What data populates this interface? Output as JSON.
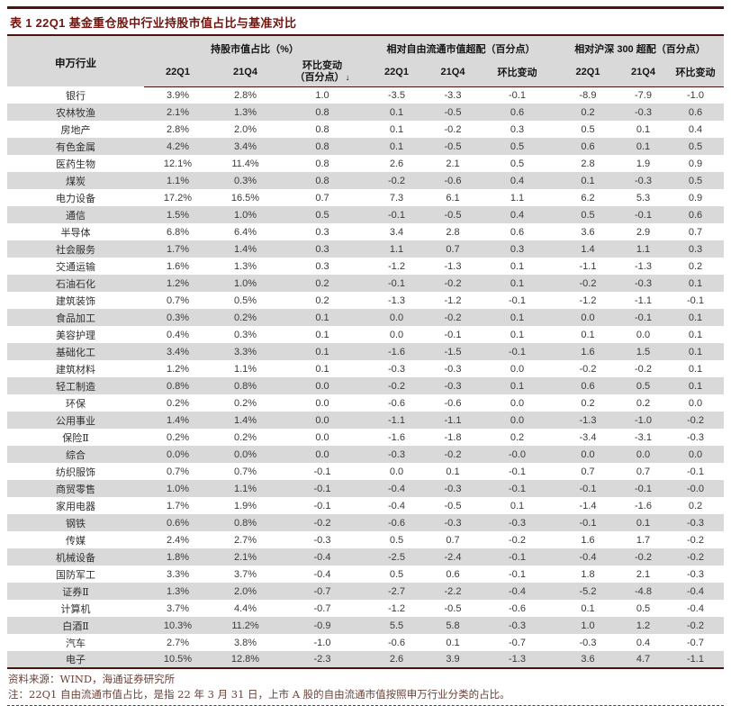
{
  "title": "表 1 22Q1 基金重仓股中行业持股市值占比与基准对比",
  "table": {
    "industry_header": "申万行业",
    "sort_icon": "↓",
    "groups": [
      {
        "label": "持股市值占比（%）",
        "cols": [
          "22Q1",
          "21Q4",
          "环比变动\n（百分点）"
        ]
      },
      {
        "label": "相对自由流通市值超配（百分点）",
        "cols": [
          "22Q1",
          "21Q4",
          "环比变动"
        ]
      },
      {
        "label": "相对沪深 300 超配（百分点）",
        "cols": [
          "22Q1",
          "21Q4",
          "环比变动"
        ]
      }
    ],
    "rows": [
      {
        "industry": "银行",
        "values": [
          "3.9%",
          "2.8%",
          "1.0",
          "-3.5",
          "-3.3",
          "-0.1",
          "-8.9",
          "-7.9",
          "-1.0"
        ]
      },
      {
        "industry": "农林牧渔",
        "values": [
          "2.1%",
          "1.3%",
          "0.8",
          "0.1",
          "-0.5",
          "0.6",
          "0.2",
          "-0.3",
          "0.6"
        ]
      },
      {
        "industry": "房地产",
        "values": [
          "2.8%",
          "2.0%",
          "0.8",
          "0.1",
          "-0.2",
          "0.3",
          "0.5",
          "0.1",
          "0.4"
        ]
      },
      {
        "industry": "有色金属",
        "values": [
          "4.2%",
          "3.4%",
          "0.8",
          "0.1",
          "-0.5",
          "0.5",
          "0.6",
          "0.1",
          "0.5"
        ]
      },
      {
        "industry": "医药生物",
        "values": [
          "12.1%",
          "11.4%",
          "0.8",
          "2.6",
          "2.1",
          "0.5",
          "2.8",
          "1.9",
          "0.9"
        ]
      },
      {
        "industry": "煤炭",
        "values": [
          "1.1%",
          "0.3%",
          "0.8",
          "-0.2",
          "-0.6",
          "0.4",
          "0.1",
          "-0.3",
          "0.5"
        ]
      },
      {
        "industry": "电力设备",
        "values": [
          "17.2%",
          "16.5%",
          "0.7",
          "7.3",
          "6.1",
          "1.1",
          "6.2",
          "5.3",
          "0.9"
        ]
      },
      {
        "industry": "通信",
        "values": [
          "1.5%",
          "1.0%",
          "0.5",
          "-0.1",
          "-0.5",
          "0.4",
          "0.5",
          "-0.1",
          "0.6"
        ]
      },
      {
        "industry": "半导体",
        "values": [
          "6.8%",
          "6.4%",
          "0.3",
          "3.4",
          "2.8",
          "0.6",
          "3.6",
          "2.9",
          "0.7"
        ]
      },
      {
        "industry": "社会服务",
        "values": [
          "1.7%",
          "1.4%",
          "0.3",
          "1.1",
          "0.7",
          "0.3",
          "1.4",
          "1.1",
          "0.3"
        ]
      },
      {
        "industry": "交通运输",
        "values": [
          "1.6%",
          "1.3%",
          "0.3",
          "-1.2",
          "-1.3",
          "0.1",
          "-1.1",
          "-1.3",
          "0.2"
        ]
      },
      {
        "industry": "石油石化",
        "values": [
          "1.2%",
          "1.0%",
          "0.2",
          "-0.1",
          "-0.2",
          "0.1",
          "-0.2",
          "-0.3",
          "0.1"
        ]
      },
      {
        "industry": "建筑装饰",
        "values": [
          "0.7%",
          "0.5%",
          "0.2",
          "-1.3",
          "-1.2",
          "-0.1",
          "-1.2",
          "-1.1",
          "-0.1"
        ]
      },
      {
        "industry": "食品加工",
        "values": [
          "0.3%",
          "0.2%",
          "0.1",
          "0.0",
          "-0.2",
          "0.1",
          "0.0",
          "-0.1",
          "0.1"
        ]
      },
      {
        "industry": "美容护理",
        "values": [
          "0.4%",
          "0.3%",
          "0.1",
          "0.0",
          "-0.1",
          "0.1",
          "0.1",
          "0.0",
          "0.1"
        ]
      },
      {
        "industry": "基础化工",
        "values": [
          "3.4%",
          "3.3%",
          "0.1",
          "-1.6",
          "-1.5",
          "-0.1",
          "1.6",
          "1.5",
          "0.1"
        ]
      },
      {
        "industry": "建筑材料",
        "values": [
          "1.2%",
          "1.1%",
          "0.1",
          "-0.3",
          "-0.3",
          "0.0",
          "-0.2",
          "-0.2",
          "0.1"
        ]
      },
      {
        "industry": "轻工制造",
        "values": [
          "0.8%",
          "0.8%",
          "0.0",
          "-0.2",
          "-0.3",
          "0.1",
          "0.6",
          "0.5",
          "0.1"
        ]
      },
      {
        "industry": "环保",
        "values": [
          "0.2%",
          "0.2%",
          "0.0",
          "-0.6",
          "-0.6",
          "0.0",
          "0.2",
          "0.2",
          "0.0"
        ]
      },
      {
        "industry": "公用事业",
        "values": [
          "1.4%",
          "1.4%",
          "0.0",
          "-1.1",
          "-1.1",
          "0.0",
          "-1.3",
          "-1.0",
          "-0.2"
        ]
      },
      {
        "industry": "保险Ⅱ",
        "values": [
          "0.2%",
          "0.2%",
          "0.0",
          "-1.6",
          "-1.8",
          "0.2",
          "-3.4",
          "-3.1",
          "-0.3"
        ]
      },
      {
        "industry": "综合",
        "values": [
          "0.0%",
          "0.0%",
          "0.0",
          "-0.3",
          "-0.2",
          "-0.0",
          "0.0",
          "0.0",
          "0.0"
        ]
      },
      {
        "industry": "纺织服饰",
        "values": [
          "0.7%",
          "0.7%",
          "-0.1",
          "0.0",
          "0.1",
          "-0.1",
          "0.7",
          "0.7",
          "-0.1"
        ]
      },
      {
        "industry": "商贸零售",
        "values": [
          "1.0%",
          "1.1%",
          "-0.1",
          "-0.4",
          "-0.3",
          "-0.1",
          "-0.1",
          "-0.1",
          "-0.0"
        ]
      },
      {
        "industry": "家用电器",
        "values": [
          "1.7%",
          "1.9%",
          "-0.1",
          "-0.4",
          "-0.5",
          "0.1",
          "-1.4",
          "-1.6",
          "0.2"
        ]
      },
      {
        "industry": "钢铁",
        "values": [
          "0.6%",
          "0.8%",
          "-0.2",
          "-0.6",
          "-0.3",
          "-0.3",
          "-0.1",
          "0.1",
          "-0.3"
        ]
      },
      {
        "industry": "传媒",
        "values": [
          "2.4%",
          "2.7%",
          "-0.3",
          "0.5",
          "0.7",
          "-0.2",
          "1.6",
          "1.7",
          "-0.2"
        ]
      },
      {
        "industry": "机械设备",
        "values": [
          "1.8%",
          "2.1%",
          "-0.4",
          "-2.5",
          "-2.4",
          "-0.1",
          "-0.4",
          "-0.2",
          "-0.2"
        ]
      },
      {
        "industry": "国防军工",
        "values": [
          "3.3%",
          "3.7%",
          "-0.4",
          "0.5",
          "0.6",
          "-0.1",
          "1.8",
          "2.1",
          "-0.3"
        ]
      },
      {
        "industry": "证券Ⅱ",
        "values": [
          "1.3%",
          "2.0%",
          "-0.7",
          "-2.7",
          "-2.2",
          "-0.4",
          "-5.2",
          "-4.8",
          "-0.4"
        ]
      },
      {
        "industry": "计算机",
        "values": [
          "3.7%",
          "4.4%",
          "-0.7",
          "-1.2",
          "-0.5",
          "-0.6",
          "0.1",
          "0.5",
          "-0.4"
        ]
      },
      {
        "industry": "白酒Ⅱ",
        "values": [
          "10.3%",
          "11.2%",
          "-0.9",
          "5.5",
          "5.8",
          "-0.3",
          "1.0",
          "1.2",
          "-0.2"
        ]
      },
      {
        "industry": "汽车",
        "values": [
          "2.7%",
          "3.8%",
          "-1.0",
          "-0.6",
          "0.1",
          "-0.7",
          "-0.3",
          "0.4",
          "-0.7"
        ]
      },
      {
        "industry": "电子",
        "values": [
          "10.5%",
          "12.8%",
          "-2.3",
          "2.6",
          "3.9",
          "-1.3",
          "3.6",
          "4.7",
          "-1.1"
        ]
      }
    ]
  },
  "footer": {
    "source": "资料来源：WIND，海通证券研究所",
    "note": "注：22Q1 自由流通市值占比，是指 22 年 3 月 31 日，上市 A 股的自由流通市值按照申万行业分类的占比。"
  },
  "colors": {
    "brand": "#701510",
    "rule": "#4d120e",
    "stripe": "#d9d9d9",
    "headerbg": "#d9d9d9",
    "note": "#6b4137",
    "dash": "#c01414"
  }
}
